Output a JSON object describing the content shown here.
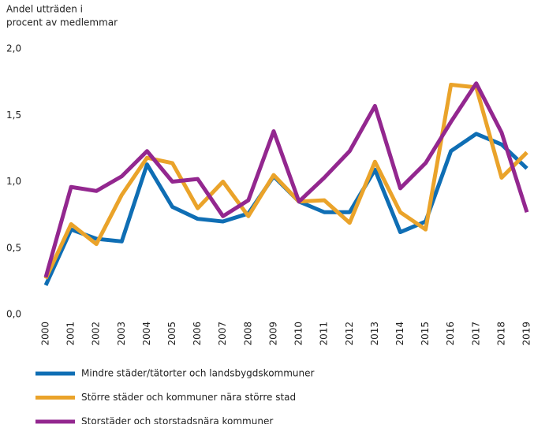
{
  "chart_data": {
    "type": "line",
    "y_label": [
      "Andel utträden i",
      "procent av medlemmar"
    ],
    "categories": [
      "2000",
      "2001",
      "2002",
      "2003",
      "2004",
      "2005",
      "2006",
      "2007",
      "2008",
      "2009",
      "2010",
      "2011",
      "2012",
      "2013",
      "2014",
      "2015",
      "2016",
      "2017",
      "2018",
      "2019"
    ],
    "series": [
      {
        "name": "Mindre städer/tätorter och landsbygdskommuner",
        "color": "#0f6eb4",
        "values": [
          0.22,
          0.64,
          0.57,
          0.55,
          1.13,
          0.81,
          0.72,
          0.7,
          0.76,
          1.04,
          0.85,
          0.77,
          0.77,
          1.09,
          0.62,
          0.7,
          1.23,
          1.36,
          1.28,
          1.1
        ]
      },
      {
        "name": "Större städer och kommuner nära större stad",
        "color": "#eaa32a",
        "values": [
          0.27,
          0.68,
          0.53,
          0.9,
          1.18,
          1.14,
          0.8,
          1.0,
          0.74,
          1.05,
          0.85,
          0.86,
          0.69,
          1.15,
          0.77,
          0.64,
          1.73,
          1.71,
          1.03,
          1.22
        ]
      },
      {
        "name": "Storstäder och storstadsnära kommuner",
        "color": "#93278f",
        "values": [
          0.28,
          0.96,
          0.93,
          1.04,
          1.23,
          1.0,
          1.02,
          0.74,
          0.86,
          1.38,
          0.85,
          1.03,
          1.23,
          1.57,
          0.95,
          1.14,
          1.45,
          1.74,
          1.37,
          0.77
        ]
      }
    ],
    "ylim": [
      0,
      2
    ],
    "yticks": [
      {
        "value": 0,
        "label": "0,0"
      },
      {
        "value": 0.5,
        "label": "0,5"
      },
      {
        "value": 1,
        "label": "1,0"
      },
      {
        "value": 1.5,
        "label": "1,5"
      },
      {
        "value": 2,
        "label": "2,0"
      }
    ],
    "grid": false
  }
}
